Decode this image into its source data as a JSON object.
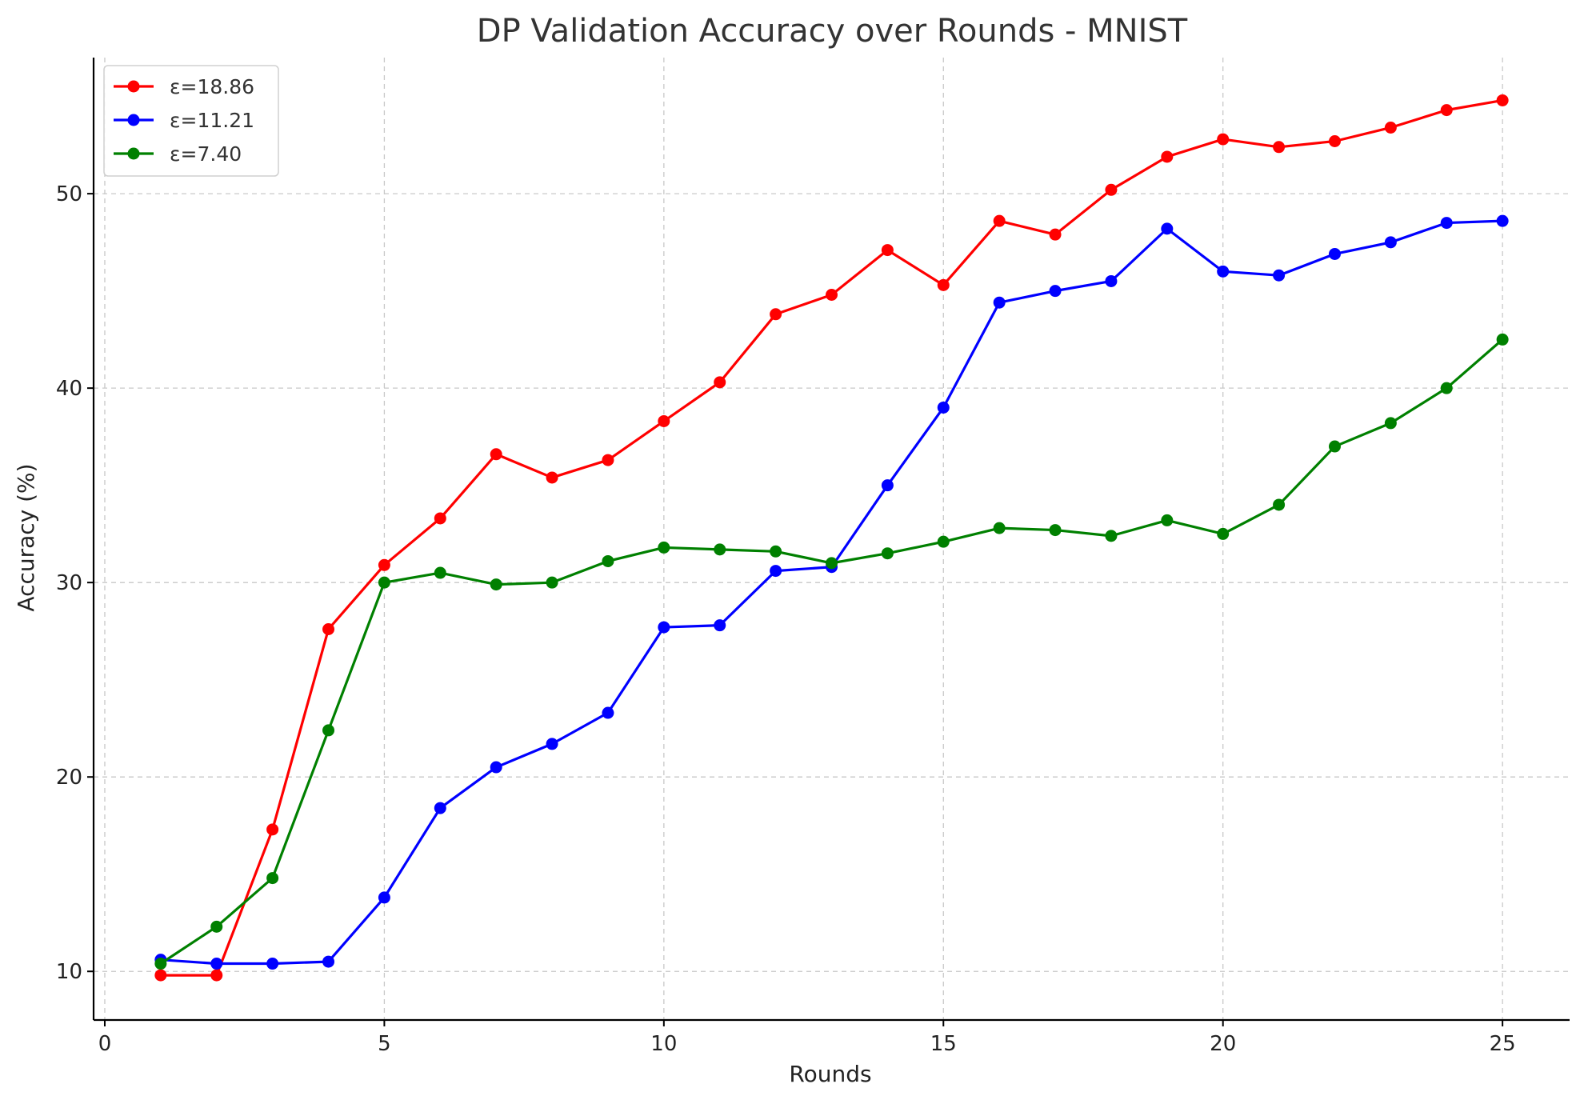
{
  "chart_data": {
    "type": "line",
    "title": "DP Validation Accuracy over Rounds - MNIST",
    "xlabel": "Rounds",
    "ylabel": "Accuracy (%)",
    "xlim": [
      -0.2,
      26.2
    ],
    "ylim": [
      7.5,
      57.0
    ],
    "xticks": [
      0,
      5,
      10,
      15,
      20,
      25
    ],
    "yticks": [
      10,
      20,
      30,
      40,
      50
    ],
    "grid": true,
    "legend_position": "top-left",
    "x": [
      1,
      2,
      3,
      4,
      5,
      6,
      7,
      8,
      9,
      10,
      11,
      12,
      13,
      14,
      15,
      16,
      17,
      18,
      19,
      20,
      21,
      22,
      23,
      24,
      25
    ],
    "series": [
      {
        "name": "ε=18.86",
        "color": "#ff0000",
        "values": [
          9.8,
          9.8,
          17.3,
          27.6,
          30.9,
          33.3,
          36.6,
          35.4,
          36.3,
          38.3,
          40.3,
          43.8,
          44.8,
          47.1,
          45.3,
          48.6,
          47.9,
          50.2,
          51.9,
          52.8,
          52.4,
          52.7,
          53.4,
          54.3,
          54.8
        ]
      },
      {
        "name": "ε=11.21",
        "color": "#0000ff",
        "values": [
          10.6,
          10.4,
          10.4,
          10.5,
          13.8,
          18.4,
          20.5,
          21.7,
          23.3,
          27.7,
          27.8,
          30.6,
          30.8,
          35.0,
          39.0,
          44.4,
          45.0,
          45.5,
          48.2,
          46.0,
          45.8,
          46.9,
          47.5,
          48.5,
          48.6
        ]
      },
      {
        "name": "ε=7.40",
        "color": "#008000",
        "values": [
          10.4,
          12.3,
          14.8,
          22.4,
          30.0,
          30.5,
          29.9,
          30.0,
          31.1,
          31.8,
          31.7,
          31.6,
          31.0,
          31.5,
          32.1,
          32.8,
          32.7,
          32.4,
          33.2,
          32.5,
          34.0,
          37.0,
          38.2,
          40.0,
          42.5
        ]
      }
    ]
  }
}
